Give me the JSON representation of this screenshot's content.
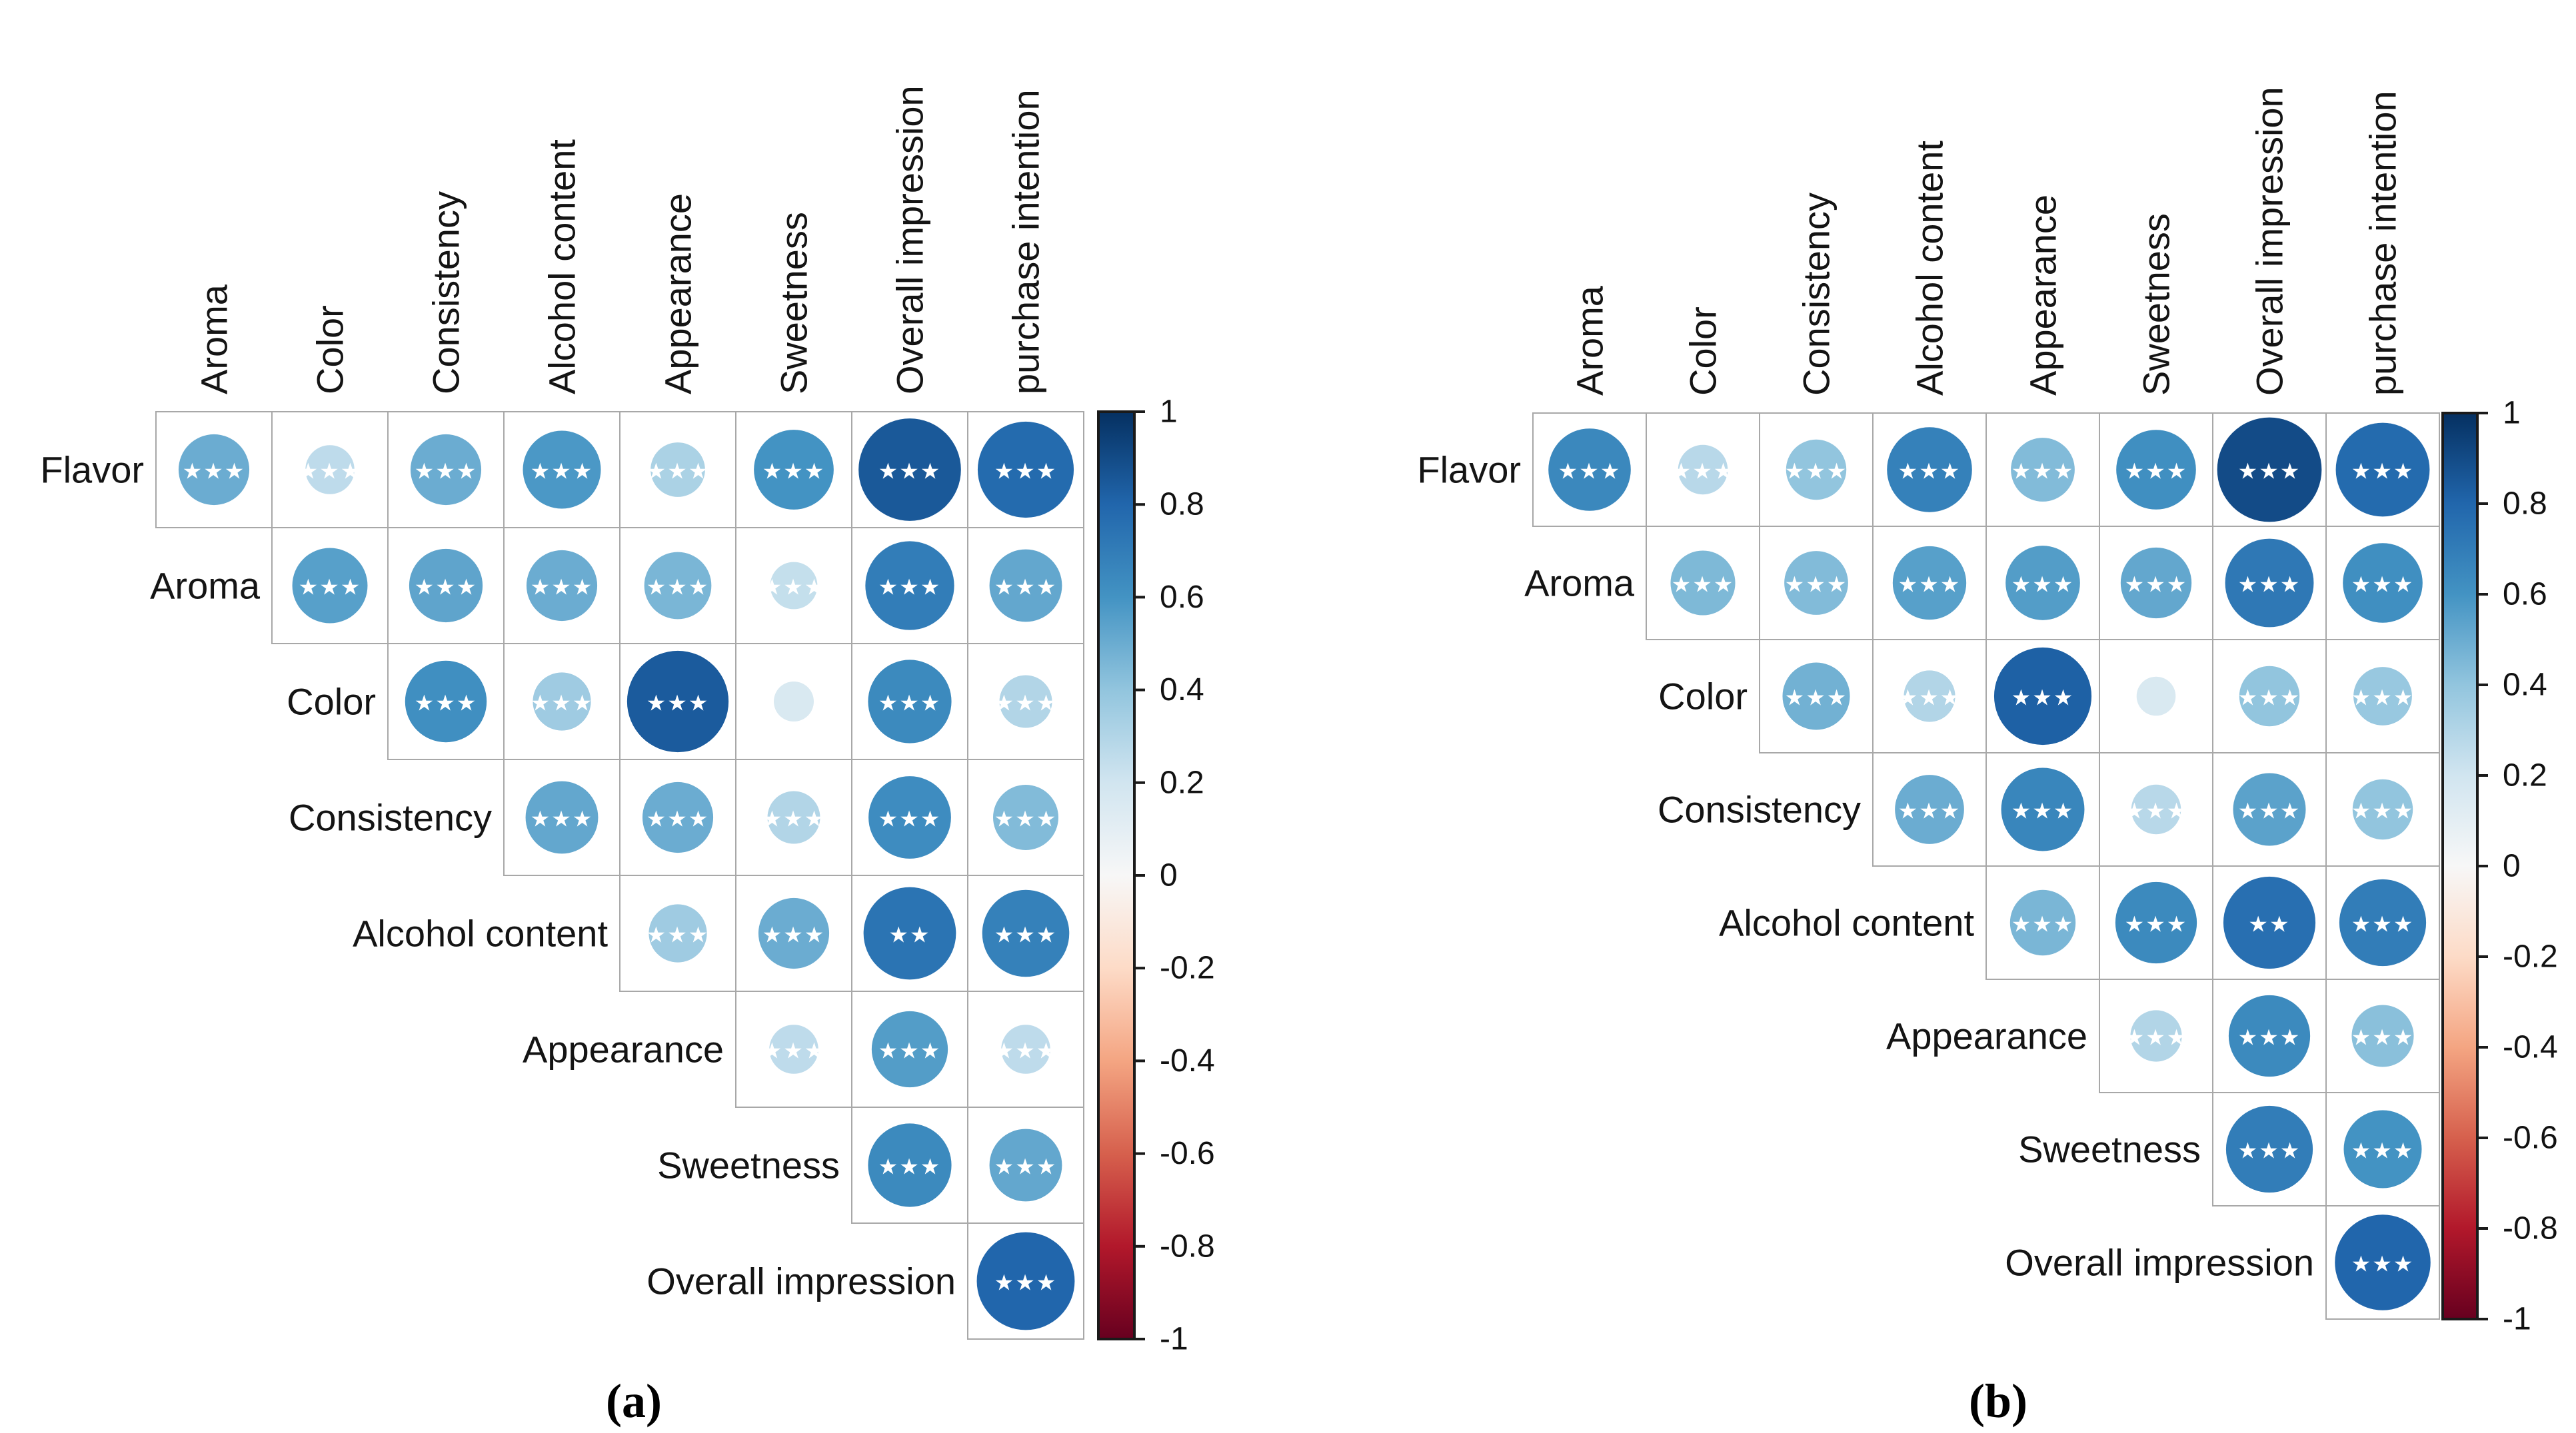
{
  "figure": {
    "description": "Correlation matrices of sensory attributes with significance stars",
    "background": "#ffffff",
    "text_color": "#141414",
    "grid_line_color": "#a8a8a8"
  },
  "colorbar": {
    "position": "right",
    "ticks": [
      "1",
      "0.8",
      "0.6",
      "0.4",
      "0.2",
      "0",
      "-0.2",
      "-0.4",
      "-0.6",
      "-0.8",
      "-1"
    ],
    "range": [
      -1,
      1
    ],
    "palette": [
      "#053061",
      "#2166ac",
      "#4393c3",
      "#92c5de",
      "#d1e5f0",
      "#f7f7f7",
      "#fddbc7",
      "#f4a582",
      "#d6604d",
      "#b2182b",
      "#67001f"
    ],
    "frame_color": "#1a1a1a"
  },
  "star_symbol": "★",
  "star_color": "#ffffff",
  "chart_data": [
    {
      "type": "heatmap",
      "subtype": "correlation-bubble-matrix",
      "panel": "a",
      "panel_label": "(a)",
      "legend_position": "right",
      "rows": [
        "Flavor",
        "Aroma",
        "Color",
        "Consistency",
        "Alcohol content",
        "Appearance",
        "Sweetness",
        "Overall impression"
      ],
      "cols": [
        "Aroma",
        "Color",
        "Consistency",
        "Alcohol content",
        "Appearance",
        "Sweetness",
        "Overall impression",
        "purchase intention"
      ],
      "cells": [
        {
          "row": "Flavor",
          "col": "Aroma",
          "r": 0.5,
          "sig": "***"
        },
        {
          "row": "Flavor",
          "col": "Color",
          "r": 0.26,
          "sig": "***"
        },
        {
          "row": "Flavor",
          "col": "Consistency",
          "r": 0.5,
          "sig": "***"
        },
        {
          "row": "Flavor",
          "col": "Alcohol content",
          "r": 0.58,
          "sig": "***"
        },
        {
          "row": "Flavor",
          "col": "Appearance",
          "r": 0.32,
          "sig": "***"
        },
        {
          "row": "Flavor",
          "col": "Sweetness",
          "r": 0.6,
          "sig": "***"
        },
        {
          "row": "Flavor",
          "col": "Overall impression",
          "r": 0.85,
          "sig": "***"
        },
        {
          "row": "Flavor",
          "col": "purchase intention",
          "r": 0.78,
          "sig": "***"
        },
        {
          "row": "Aroma",
          "col": "Color",
          "r": 0.55,
          "sig": "***"
        },
        {
          "row": "Aroma",
          "col": "Consistency",
          "r": 0.53,
          "sig": "***"
        },
        {
          "row": "Aroma",
          "col": "Alcohol content",
          "r": 0.5,
          "sig": "***"
        },
        {
          "row": "Aroma",
          "col": "Appearance",
          "r": 0.46,
          "sig": "***"
        },
        {
          "row": "Aroma",
          "col": "Sweetness",
          "r": 0.24,
          "sig": "***"
        },
        {
          "row": "Aroma",
          "col": "Overall impression",
          "r": 0.7,
          "sig": "***"
        },
        {
          "row": "Aroma",
          "col": "purchase intention",
          "r": 0.52,
          "sig": "***"
        },
        {
          "row": "Color",
          "col": "Consistency",
          "r": 0.62,
          "sig": "***"
        },
        {
          "row": "Color",
          "col": "Alcohol content",
          "r": 0.36,
          "sig": "***"
        },
        {
          "row": "Color",
          "col": "Appearance",
          "r": 0.84,
          "sig": "***"
        },
        {
          "row": "Color",
          "col": "Sweetness",
          "r": 0.16,
          "sig": ""
        },
        {
          "row": "Color",
          "col": "Overall impression",
          "r": 0.64,
          "sig": "***"
        },
        {
          "row": "Color",
          "col": "purchase intention",
          "r": 0.3,
          "sig": "***"
        },
        {
          "row": "Consistency",
          "col": "Alcohol content",
          "r": 0.52,
          "sig": "***"
        },
        {
          "row": "Consistency",
          "col": "Appearance",
          "r": 0.5,
          "sig": "***"
        },
        {
          "row": "Consistency",
          "col": "Sweetness",
          "r": 0.3,
          "sig": "***"
        },
        {
          "row": "Consistency",
          "col": "Overall impression",
          "r": 0.63,
          "sig": "***"
        },
        {
          "row": "Consistency",
          "col": "purchase intention",
          "r": 0.44,
          "sig": "***"
        },
        {
          "row": "Alcohol content",
          "col": "Appearance",
          "r": 0.36,
          "sig": "***"
        },
        {
          "row": "Alcohol content",
          "col": "Sweetness",
          "r": 0.5,
          "sig": "***"
        },
        {
          "row": "Alcohol content",
          "col": "Overall impression",
          "r": 0.74,
          "sig": "**"
        },
        {
          "row": "Alcohol content",
          "col": "purchase intention",
          "r": 0.68,
          "sig": "***"
        },
        {
          "row": "Appearance",
          "col": "Sweetness",
          "r": 0.26,
          "sig": "***"
        },
        {
          "row": "Appearance",
          "col": "Overall impression",
          "r": 0.56,
          "sig": "***"
        },
        {
          "row": "Appearance",
          "col": "purchase intention",
          "r": 0.26,
          "sig": "***"
        },
        {
          "row": "Sweetness",
          "col": "Overall impression",
          "r": 0.64,
          "sig": "***"
        },
        {
          "row": "Sweetness",
          "col": "purchase intention",
          "r": 0.52,
          "sig": "***"
        },
        {
          "row": "Overall impression",
          "col": "purchase intention",
          "r": 0.8,
          "sig": "***"
        }
      ]
    },
    {
      "type": "heatmap",
      "subtype": "correlation-bubble-matrix",
      "panel": "b",
      "panel_label": "(b)",
      "legend_position": "right",
      "rows": [
        "Flavor",
        "Aroma",
        "Color",
        "Consistency",
        "Alcohol content",
        "Appearance",
        "Sweetness",
        "Overall impression"
      ],
      "cols": [
        "Aroma",
        "Color",
        "Consistency",
        "Alcohol content",
        "Appearance",
        "Sweetness",
        "Overall impression",
        "purchase intention"
      ],
      "cells": [
        {
          "row": "Flavor",
          "col": "Aroma",
          "r": 0.65,
          "sig": "***"
        },
        {
          "row": "Flavor",
          "col": "Color",
          "r": 0.28,
          "sig": "***"
        },
        {
          "row": "Flavor",
          "col": "Consistency",
          "r": 0.4,
          "sig": "***"
        },
        {
          "row": "Flavor",
          "col": "Alcohol content",
          "r": 0.68,
          "sig": "***"
        },
        {
          "row": "Flavor",
          "col": "Appearance",
          "r": 0.44,
          "sig": "***"
        },
        {
          "row": "Flavor",
          "col": "Sweetness",
          "r": 0.62,
          "sig": "***"
        },
        {
          "row": "Flavor",
          "col": "Overall impression",
          "r": 0.9,
          "sig": "***"
        },
        {
          "row": "Flavor",
          "col": "purchase intention",
          "r": 0.78,
          "sig": "***"
        },
        {
          "row": "Aroma",
          "col": "Color",
          "r": 0.45,
          "sig": "***"
        },
        {
          "row": "Aroma",
          "col": "Consistency",
          "r": 0.44,
          "sig": "***"
        },
        {
          "row": "Aroma",
          "col": "Alcohol content",
          "r": 0.55,
          "sig": "***"
        },
        {
          "row": "Aroma",
          "col": "Appearance",
          "r": 0.56,
          "sig": "***"
        },
        {
          "row": "Aroma",
          "col": "Sweetness",
          "r": 0.52,
          "sig": "***"
        },
        {
          "row": "Aroma",
          "col": "Overall impression",
          "r": 0.72,
          "sig": "***"
        },
        {
          "row": "Aroma",
          "col": "purchase intention",
          "r": 0.62,
          "sig": "***"
        },
        {
          "row": "Color",
          "col": "Consistency",
          "r": 0.48,
          "sig": "***"
        },
        {
          "row": "Color",
          "col": "Alcohol content",
          "r": 0.3,
          "sig": "***"
        },
        {
          "row": "Color",
          "col": "Appearance",
          "r": 0.82,
          "sig": "***"
        },
        {
          "row": "Color",
          "col": "Sweetness",
          "r": 0.16,
          "sig": ""
        },
        {
          "row": "Color",
          "col": "Overall impression",
          "r": 0.4,
          "sig": "***"
        },
        {
          "row": "Color",
          "col": "purchase intention",
          "r": 0.38,
          "sig": "***"
        },
        {
          "row": "Consistency",
          "col": "Alcohol content",
          "r": 0.5,
          "sig": "***"
        },
        {
          "row": "Consistency",
          "col": "Appearance",
          "r": 0.66,
          "sig": "***"
        },
        {
          "row": "Consistency",
          "col": "Sweetness",
          "r": 0.28,
          "sig": "***"
        },
        {
          "row": "Consistency",
          "col": "Overall impression",
          "r": 0.54,
          "sig": "***"
        },
        {
          "row": "Consistency",
          "col": "purchase intention",
          "r": 0.4,
          "sig": "***"
        },
        {
          "row": "Alcohol content",
          "col": "Appearance",
          "r": 0.46,
          "sig": "***"
        },
        {
          "row": "Alcohol content",
          "col": "Sweetness",
          "r": 0.64,
          "sig": "***"
        },
        {
          "row": "Alcohol content",
          "col": "Overall impression",
          "r": 0.76,
          "sig": "**"
        },
        {
          "row": "Alcohol content",
          "col": "purchase intention",
          "r": 0.7,
          "sig": "***"
        },
        {
          "row": "Appearance",
          "col": "Sweetness",
          "r": 0.3,
          "sig": "***"
        },
        {
          "row": "Appearance",
          "col": "Overall impression",
          "r": 0.64,
          "sig": "***"
        },
        {
          "row": "Appearance",
          "col": "purchase intention",
          "r": 0.42,
          "sig": "***"
        },
        {
          "row": "Sweetness",
          "col": "Overall impression",
          "r": 0.7,
          "sig": "***"
        },
        {
          "row": "Sweetness",
          "col": "purchase intention",
          "r": 0.6,
          "sig": "***"
        },
        {
          "row": "Overall impression",
          "col": "purchase intention",
          "r": 0.8,
          "sig": "***"
        }
      ]
    }
  ]
}
